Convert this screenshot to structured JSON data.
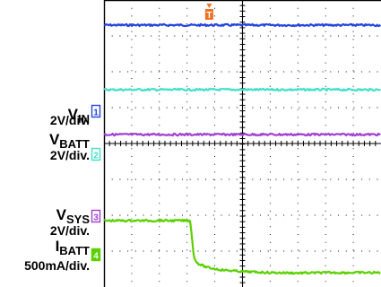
{
  "chart_data": {
    "type": "line",
    "title": "",
    "xlabel": "",
    "ylabel": "",
    "grid": true,
    "divisions": {
      "x": 10,
      "y": 8
    },
    "trigger_marker": "T",
    "channel_labels": [
      {
        "main": "V",
        "sub": "IN",
        "scale": "2V/div.",
        "marker": "1",
        "color": "#2244dd"
      },
      {
        "main": "V",
        "sub": "BATT",
        "scale": "2V/div.",
        "marker": "2",
        "color": "#40e0c8"
      },
      {
        "main": "V",
        "sub": "SYS",
        "scale": "2V/div.",
        "marker": "3",
        "color": "#a040d0"
      },
      {
        "main": "I",
        "sub": "BATT",
        "scale": "500mA/div.",
        "marker": "4",
        "color": "#5ad000"
      }
    ],
    "series": [
      {
        "color": "#2244dd",
        "x": [
          0,
          10
        ],
        "y": [
          7.3,
          7.3
        ]
      },
      {
        "color": "#40e0c8",
        "x": [
          0,
          10
        ],
        "y": [
          5.5,
          5.5
        ]
      },
      {
        "color": "#a040d0",
        "x": [
          0,
          10
        ],
        "y": [
          4.25,
          4.25
        ]
      },
      {
        "color": "#5ad000",
        "x": [
          0,
          3.12,
          3.16,
          3.25,
          3.4,
          3.7,
          4.2,
          5.0,
          6.0,
          7.0,
          8.0,
          9.0,
          10.0
        ],
        "y": [
          1.85,
          1.85,
          1.5,
          0.8,
          0.65,
          0.55,
          0.48,
          0.43,
          0.4,
          0.39,
          0.4,
          0.4,
          0.4
        ]
      }
    ]
  }
}
